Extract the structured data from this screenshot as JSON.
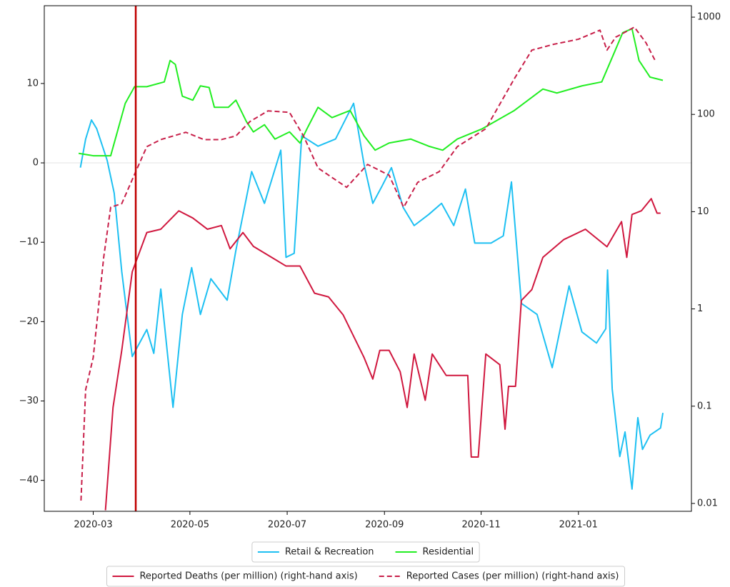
{
  "chart_data": {
    "type": "line",
    "xlim": [
      2020.083,
      2021.194
    ],
    "xticks": [
      {
        "value": 2020.167,
        "label": "2020-03"
      },
      {
        "value": 2020.333,
        "label": "2020-05"
      },
      {
        "value": 2020.5,
        "label": "2020-07"
      },
      {
        "value": 2020.667,
        "label": "2020-09"
      },
      {
        "value": 2020.833,
        "label": "2020-11"
      },
      {
        "value": 2021.0,
        "label": "2021-01"
      }
    ],
    "ylim": [
      -43.9,
      19.8
    ],
    "yticks": [
      -40,
      -30,
      -20,
      -10,
      0,
      10
    ],
    "y2lim": [
      0.0083,
      1311
    ],
    "y2ticks": [
      0.01,
      0.1,
      1,
      10,
      100,
      1000
    ],
    "y2log": true,
    "hline": 0,
    "vline": 2020.24,
    "vline_color": "#c00000",
    "series": [
      {
        "name": "Retail & Recreation",
        "color": "#1ec0f2",
        "dash": false,
        "x": [
          2020.145,
          2020.154,
          2020.164,
          2020.173,
          2020.191,
          2020.203,
          2020.216,
          2020.234,
          2020.259,
          2020.271,
          2020.283,
          2020.304,
          2020.32,
          2020.336,
          2020.351,
          2020.369,
          2020.397,
          2020.412,
          2020.439,
          2020.461,
          2020.489,
          2020.498,
          2020.512,
          2020.525,
          2020.553,
          2020.583,
          2020.614,
          2020.632,
          2020.647,
          2020.663,
          2020.679,
          2020.699,
          2020.718,
          2020.743,
          2020.765,
          2020.786,
          2020.806,
          2020.822,
          2020.85,
          2020.871,
          2020.885,
          2020.902,
          2020.929,
          2020.955,
          2020.984,
          2021.006,
          2021.031,
          2021.047,
          2021.05,
          2021.058,
          2021.071,
          2021.08,
          2021.092,
          2021.102,
          2021.11,
          2021.123,
          2021.141,
          2021.145
        ],
        "values": [
          -0.6,
          3.0,
          5.4,
          4.3,
          0.3,
          -3.8,
          -13.7,
          -24.4,
          -21,
          -24,
          -15.9,
          -30.8,
          -19.1,
          -13.2,
          -19.1,
          -14.6,
          -17.3,
          -11,
          -1.1,
          -5.1,
          1.6,
          -11.9,
          -11.4,
          3.4,
          2.1,
          3,
          7.5,
          -0.2,
          -5.1,
          -2.9,
          -0.6,
          -5.6,
          -7.9,
          -6.5,
          -5.1,
          -7.9,
          -3.3,
          -10.1,
          -10.1,
          -9.2,
          -2.4,
          -17.7,
          -19.1,
          -25.8,
          -15.5,
          -21.3,
          -22.7,
          -20.9,
          -13.5,
          -28.5,
          -37,
          -33.9,
          -41.1,
          -32.1,
          -36.1,
          -34.3,
          -33.4,
          -31.5
        ]
      },
      {
        "name": "Residential",
        "color": "#22ee22",
        "dash": false,
        "x": [
          2020.142,
          2020.167,
          2020.197,
          2020.222,
          2020.238,
          2020.259,
          2020.289,
          2020.299,
          2020.308,
          2020.32,
          2020.338,
          2020.351,
          2020.366,
          2020.375,
          2020.399,
          2020.412,
          2020.43,
          2020.442,
          2020.461,
          2020.479,
          2020.504,
          2020.522,
          2020.534,
          2020.553,
          2020.577,
          2020.608,
          2020.632,
          2020.651,
          2020.675,
          2020.712,
          2020.743,
          2020.767,
          2020.792,
          2020.835,
          2020.89,
          2020.939,
          2020.963,
          2021.006,
          2021.04,
          2021.061,
          2021.076,
          2021.092,
          2021.104,
          2021.123,
          2021.145
        ],
        "values": [
          1.2,
          0.9,
          0.9,
          7.5,
          9.6,
          9.6,
          10.2,
          12.9,
          12.4,
          8.4,
          7.9,
          9.7,
          9.5,
          7,
          7,
          7.9,
          5.2,
          3.9,
          4.8,
          3,
          3.9,
          2.5,
          4.3,
          7,
          5.7,
          6.6,
          3.4,
          1.6,
          2.5,
          3,
          2.1,
          1.6,
          3,
          4.3,
          6.6,
          9.3,
          8.8,
          9.7,
          10.2,
          13.8,
          16.4,
          16.9,
          12.9,
          10.8,
          10.4
        ]
      },
      {
        "name": "Reported Deaths (per million) (right-hand axis)",
        "color": "#d0183f",
        "dash": false,
        "axis": "y2",
        "x": [
          2020.188,
          2020.201,
          2020.216,
          2020.234,
          2020.259,
          2020.283,
          2020.314,
          2020.338,
          2020.363,
          2020.387,
          2020.402,
          2020.424,
          2020.442,
          2020.473,
          2020.498,
          2020.522,
          2020.547,
          2020.571,
          2020.596,
          2020.632,
          2020.647,
          2020.659,
          2020.675,
          2020.694,
          2020.706,
          2020.718,
          2020.737,
          2020.749,
          2020.773,
          2020.81,
          2020.816,
          2020.828,
          2020.841,
          2020.865,
          2020.874,
          2020.88,
          2020.892,
          2020.902,
          2020.92,
          2020.939,
          2020.975,
          2021.012,
          2021.049,
          2021.074,
          2021.083,
          2021.092,
          2021.108,
          2021.125,
          2021.135,
          2021.141
        ],
        "values": [
          0.0085,
          0.097,
          0.375,
          2.41,
          6.1,
          6.6,
          10.2,
          8.6,
          6.6,
          7.2,
          4.15,
          6.1,
          4.4,
          3.4,
          2.76,
          2.76,
          1.45,
          1.33,
          0.87,
          0.316,
          0.19,
          0.375,
          0.375,
          0.226,
          0.097,
          0.344,
          0.115,
          0.344,
          0.207,
          0.207,
          0.03,
          0.03,
          0.344,
          0.267,
          0.058,
          0.16,
          0.16,
          1.22,
          1.58,
          3.39,
          5.17,
          6.6,
          4.36,
          7.9,
          3.39,
          9.36,
          10.2,
          13.6,
          9.66,
          9.66
        ]
      },
      {
        "name": "Reported Cases (per million) (right-hand axis)",
        "color": "#c8204a",
        "dash": true,
        "axis": "y2",
        "x": [
          2020.146,
          2020.154,
          2020.167,
          2020.185,
          2020.197,
          2020.216,
          2020.24,
          2020.259,
          2020.283,
          2020.326,
          2020.357,
          2020.387,
          2020.412,
          2020.436,
          2020.467,
          2020.504,
          2020.528,
          2020.553,
          2020.602,
          2020.638,
          2020.675,
          2020.7,
          2020.724,
          2020.761,
          2020.792,
          2020.841,
          2020.89,
          2020.92,
          2020.957,
          2021.0,
          2021.037,
          2021.049,
          2021.064,
          2021.08,
          2021.096,
          2021.116,
          2021.132
        ],
        "values": [
          0.0107,
          0.148,
          0.316,
          3.39,
          11.1,
          12.1,
          25.8,
          46.6,
          55.1,
          65.5,
          55.1,
          55.1,
          60.1,
          84.4,
          108.7,
          104.9,
          60.1,
          28.1,
          17.8,
          30.6,
          23.7,
          11.1,
          20,
          25.8,
          46.6,
          71.3,
          233,
          458,
          525,
          593,
          735,
          458,
          623,
          700,
          790,
          545,
          355
        ]
      }
    ]
  }
}
